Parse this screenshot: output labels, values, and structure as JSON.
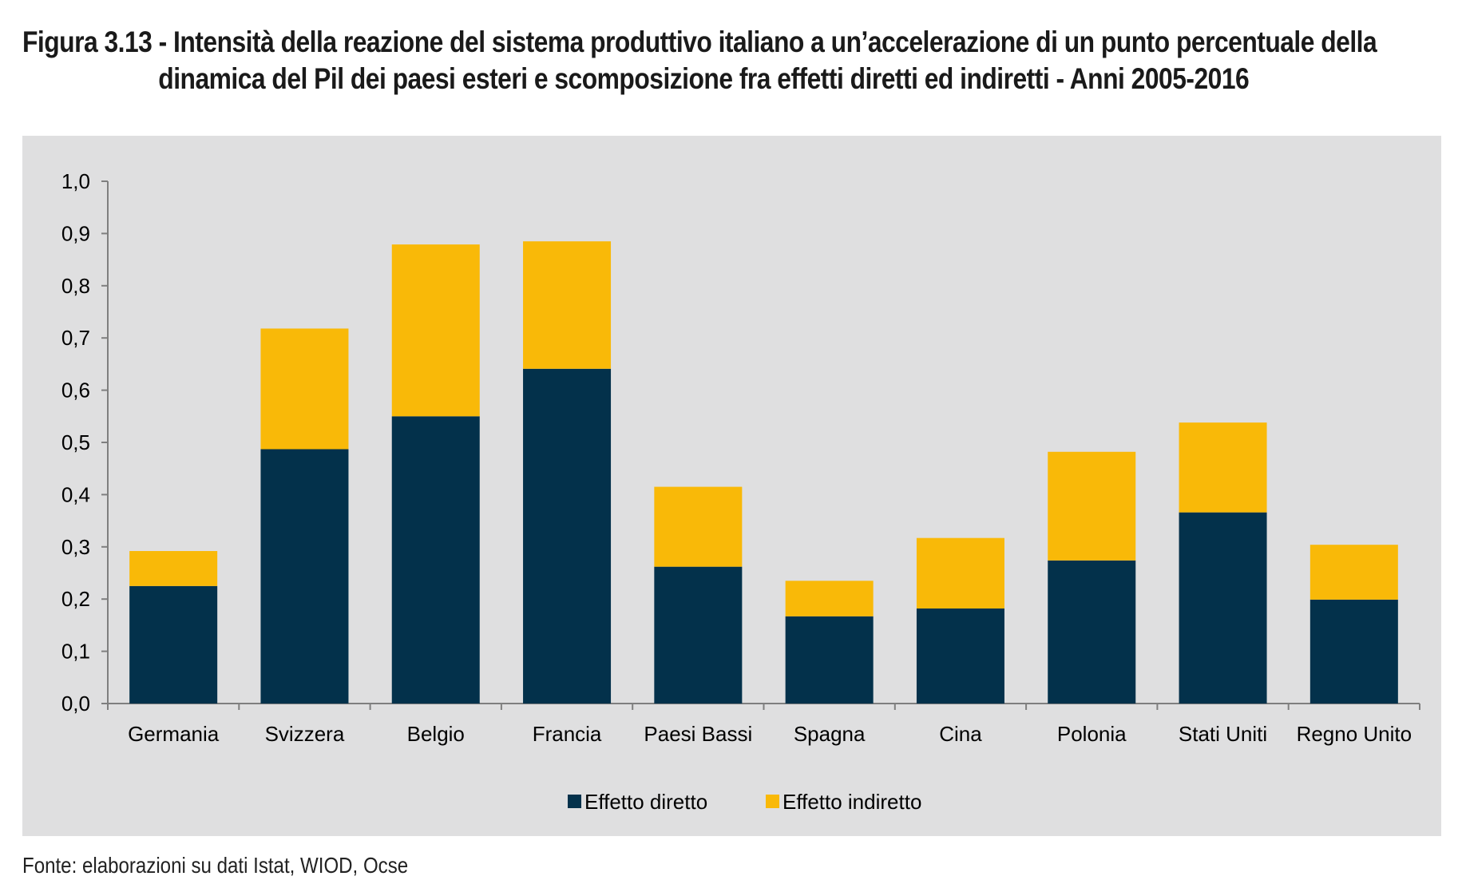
{
  "title": {
    "line1": "Figura 3.13 - Intensità della reazione del sistema produttivo italiano a un’accelerazione di un punto percentuale della",
    "line2": "dinamica del Pil dei paesi esteri e scomposizione fra effetti diretti ed indiretti - Anni 2005-2016"
  },
  "source": "Fonte: elaborazioni su dati Istat, WIOD, Ocse",
  "colors": {
    "panel": "#dfdfe0",
    "diretto": "#03314b",
    "indiretto": "#f9b908",
    "axis": "#7f7f7f",
    "text": "#000000"
  },
  "chart_data": {
    "type": "bar",
    "stacked": true,
    "title": "",
    "xlabel": "",
    "ylabel": "",
    "ylim": [
      0,
      1.0
    ],
    "yticks": [
      "0,0",
      "0,1",
      "0,2",
      "0,3",
      "0,4",
      "0,5",
      "0,6",
      "0,7",
      "0,8",
      "0,9",
      "1,0"
    ],
    "categories": [
      "Germania",
      "Svizzera",
      "Belgio",
      "Francia",
      "Paesi Bassi",
      "Spagna",
      "Cina",
      "Polonia",
      "Stati Uniti",
      "Regno Unito"
    ],
    "series": [
      {
        "name": "Effetto diretto",
        "color": "#03314b",
        "values": [
          0.225,
          0.487,
          0.55,
          0.641,
          0.262,
          0.167,
          0.182,
          0.274,
          0.366,
          0.199
        ]
      },
      {
        "name": "Effetto indiretto",
        "color": "#f9b908",
        "values": [
          0.067,
          0.231,
          0.329,
          0.244,
          0.153,
          0.068,
          0.135,
          0.208,
          0.172,
          0.105
        ]
      }
    ],
    "legend_position": "bottom-center",
    "grid": false
  }
}
